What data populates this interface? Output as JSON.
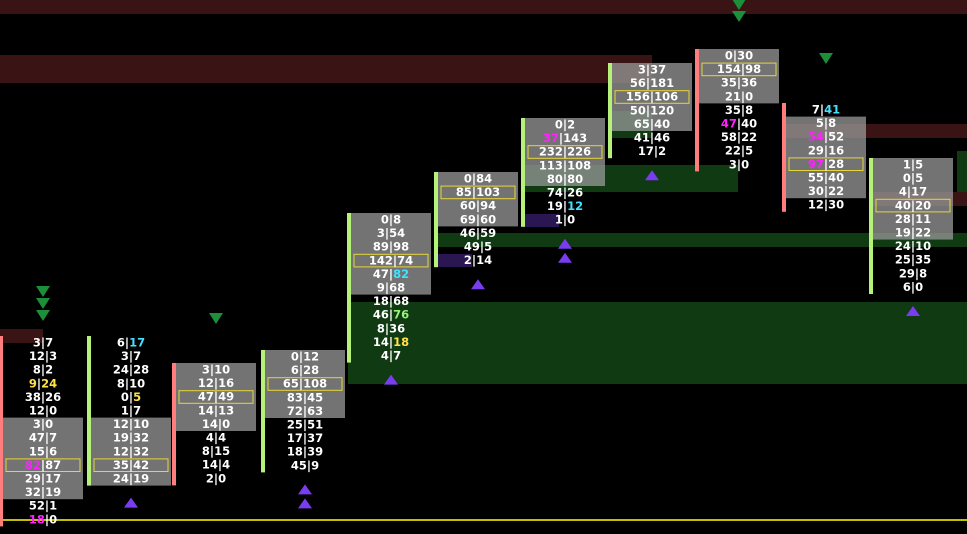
{
  "chart_data": {
    "type": "footprint",
    "colors": {
      "background": "#000000",
      "text": "#ffffff",
      "highlight_magenta": "#ff22ff",
      "highlight_cyan": "#44e0ff",
      "highlight_yellow": "#ffe14a",
      "poc_box": "#e6d63a",
      "buy_bar": "#b6f27a",
      "sell_bar": "#ff7d7d",
      "value_area_grey": "#9a9a9a",
      "zone_red": "#3a1414",
      "zone_green": "#0f3a12",
      "zone_purple": "#2a1650",
      "marker_up": "#7a3cf0",
      "marker_down": "#1d8f3a",
      "price_line": "#ffff00"
    },
    "bars": [
      {
        "rows": [
          {
            "bid": "3",
            "ask": "7"
          },
          {
            "bid": "12",
            "ask": "3"
          },
          {
            "bid": "8",
            "ask": "2"
          },
          {
            "bid": "9",
            "ask": "24",
            "ask_hl": "yellow",
            "bid_hl": "yellow"
          },
          {
            "bid": "38",
            "ask": "26"
          },
          {
            "bid": "12",
            "ask": "0"
          },
          {
            "bid": "3",
            "ask": "0"
          },
          {
            "bid": "47",
            "ask": "7"
          },
          {
            "bid": "15",
            "ask": "6"
          },
          {
            "bid": "82",
            "ask": "87",
            "bid_hl": "magenta",
            "poc": true
          },
          {
            "bid": "29",
            "ask": "17"
          },
          {
            "bid": "32",
            "ask": "19"
          },
          {
            "bid": "52",
            "ask": "1"
          },
          {
            "bid": "18",
            "ask": "0",
            "bid_hl": "magenta"
          }
        ]
      },
      {
        "rows": [
          {
            "bid": "6",
            "ask": "17",
            "ask_hl": "cyan"
          },
          {
            "bid": "3",
            "ask": "7"
          },
          {
            "bid": "24",
            "ask": "28"
          },
          {
            "bid": "8",
            "ask": "10"
          },
          {
            "bid": "0",
            "ask": "5",
            "ask_hl": "yellow"
          },
          {
            "bid": "1",
            "ask": "7"
          },
          {
            "bid": "12",
            "ask": "10"
          },
          {
            "bid": "19",
            "ask": "32"
          },
          {
            "bid": "12",
            "ask": "32"
          },
          {
            "bid": "35",
            "ask": "42",
            "poc": true
          },
          {
            "bid": "24",
            "ask": "19"
          }
        ]
      },
      {
        "rows": [
          {
            "bid": "3",
            "ask": "10"
          },
          {
            "bid": "12",
            "ask": "16"
          },
          {
            "bid": "47",
            "ask": "49",
            "poc": true
          },
          {
            "bid": "14",
            "ask": "13"
          },
          {
            "bid": "14",
            "ask": "0"
          },
          {
            "bid": "4",
            "ask": "4"
          },
          {
            "bid": "8",
            "ask": "15"
          },
          {
            "bid": "14",
            "ask": "4"
          },
          {
            "bid": "2",
            "ask": "0"
          }
        ]
      },
      {
        "rows": [
          {
            "bid": "0",
            "ask": "12"
          },
          {
            "bid": "6",
            "ask": "28"
          },
          {
            "bid": "65",
            "ask": "108",
            "poc": true
          },
          {
            "bid": "83",
            "ask": "45"
          },
          {
            "bid": "72",
            "ask": "63"
          },
          {
            "bid": "25",
            "ask": "51"
          },
          {
            "bid": "17",
            "ask": "37"
          },
          {
            "bid": "18",
            "ask": "39"
          },
          {
            "bid": "45",
            "ask": "9"
          }
        ]
      },
      {
        "rows": [
          {
            "bid": "0",
            "ask": "8"
          },
          {
            "bid": "3",
            "ask": "54"
          },
          {
            "bid": "89",
            "ask": "98"
          },
          {
            "bid": "142",
            "ask": "74",
            "poc": true
          },
          {
            "bid": "47",
            "ask": "82",
            "ask_hl": "cyan"
          },
          {
            "bid": "9",
            "ask": "68"
          },
          {
            "bid": "18",
            "ask": "68"
          },
          {
            "bid": "46",
            "ask": "76",
            "ask_hl": "green"
          },
          {
            "bid": "8",
            "ask": "36"
          },
          {
            "bid": "14",
            "ask": "18",
            "ask_hl": "yellow"
          },
          {
            "bid": "4",
            "ask": "7"
          }
        ]
      },
      {
        "rows": [
          {
            "bid": "0",
            "ask": "84"
          },
          {
            "bid": "85",
            "ask": "103",
            "poc": true
          },
          {
            "bid": "60",
            "ask": "94"
          },
          {
            "bid": "69",
            "ask": "60"
          },
          {
            "bid": "46",
            "ask": "59"
          },
          {
            "bid": "49",
            "ask": "5"
          },
          {
            "bid": "2",
            "ask": "14"
          }
        ]
      },
      {
        "rows": [
          {
            "bid": "0",
            "ask": "2"
          },
          {
            "bid": "37",
            "ask": "143",
            "bid_hl": "magenta"
          },
          {
            "bid": "232",
            "ask": "226",
            "poc": true
          },
          {
            "bid": "113",
            "ask": "108"
          },
          {
            "bid": "80",
            "ask": "80"
          },
          {
            "bid": "74",
            "ask": "26"
          },
          {
            "bid": "19",
            "ask": "12",
            "ask_hl": "cyan"
          },
          {
            "bid": "1",
            "ask": "0"
          }
        ]
      },
      {
        "rows": [
          {
            "bid": "3",
            "ask": "37"
          },
          {
            "bid": "56",
            "ask": "181"
          },
          {
            "bid": "156",
            "ask": "106",
            "poc": true
          },
          {
            "bid": "50",
            "ask": "120"
          },
          {
            "bid": "65",
            "ask": "40"
          },
          {
            "bid": "41",
            "ask": "46"
          },
          {
            "bid": "17",
            "ask": "2"
          }
        ]
      },
      {
        "rows": [
          {
            "bid": "0",
            "ask": "30"
          },
          {
            "bid": "154",
            "ask": "98",
            "poc": true
          },
          {
            "bid": "35",
            "ask": "36"
          },
          {
            "bid": "21",
            "ask": "0"
          },
          {
            "bid": "35",
            "ask": "8"
          },
          {
            "bid": "47",
            "ask": "40",
            "bid_hl": "magenta"
          },
          {
            "bid": "58",
            "ask": "22"
          },
          {
            "bid": "22",
            "ask": "5"
          },
          {
            "bid": "3",
            "ask": "0"
          }
        ]
      },
      {
        "rows": [
          {
            "bid": "7",
            "ask": "41",
            "ask_hl": "cyan"
          },
          {
            "bid": "5",
            "ask": "8"
          },
          {
            "bid": "54",
            "ask": "52",
            "bid_hl": "magenta"
          },
          {
            "bid": "29",
            "ask": "16"
          },
          {
            "bid": "97",
            "ask": "28",
            "bid_hl": "magenta",
            "poc": true
          },
          {
            "bid": "55",
            "ask": "40"
          },
          {
            "bid": "30",
            "ask": "22"
          },
          {
            "bid": "12",
            "ask": "30"
          }
        ]
      },
      {
        "rows": [
          {
            "bid": "1",
            "ask": "5"
          },
          {
            "bid": "0",
            "ask": "5"
          },
          {
            "bid": "4",
            "ask": "17"
          },
          {
            "bid": "40",
            "ask": "20",
            "poc": true
          },
          {
            "bid": "28",
            "ask": "11"
          },
          {
            "bid": "19",
            "ask": "22"
          },
          {
            "bid": "24",
            "ask": "10"
          },
          {
            "bid": "25",
            "ask": "35"
          },
          {
            "bid": "29",
            "ask": "8"
          },
          {
            "bid": "6",
            "ask": "0"
          }
        ]
      }
    ],
    "markers": [
      {
        "bar": 0,
        "direction": "down",
        "count": 3
      },
      {
        "bar": 0,
        "direction": "up",
        "count": 0
      },
      {
        "bar": 1,
        "direction": "up",
        "count": 1
      },
      {
        "bar": 2,
        "direction": "down",
        "count": 1
      },
      {
        "bar": 3,
        "direction": "up",
        "count": 2
      },
      {
        "bar": 4,
        "direction": "up",
        "count": 1
      },
      {
        "bar": 5,
        "direction": "up",
        "count": 1
      },
      {
        "bar": 6,
        "direction": "up",
        "count": 2
      },
      {
        "bar": 7,
        "direction": "up",
        "count": 1
      },
      {
        "bar": 8,
        "direction": "down",
        "count": 2
      },
      {
        "bar": 9,
        "direction": "down",
        "count": 1
      },
      {
        "bar": 10,
        "direction": "up",
        "count": 1
      }
    ]
  }
}
